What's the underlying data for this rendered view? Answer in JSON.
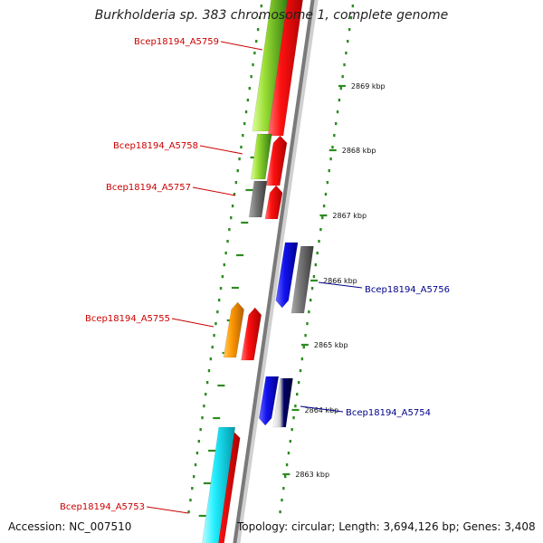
{
  "title": "Burkholderia sp. 383 chromosome 1, complete genome",
  "accession": "Accession: NC_007510",
  "summary": "Topology: circular; Length: 3,694,126 bp; Genes: 3,408",
  "colors": {
    "backbone": "#888888",
    "ring_dots": "#2e8b22",
    "label_left": "#cc0000",
    "label_right": "#00008b"
  },
  "ticks": [
    {
      "label": "2869 kbp"
    },
    {
      "label": "2868 kbp"
    },
    {
      "label": "2867 kbp"
    },
    {
      "label": "2866 kbp"
    },
    {
      "label": "2865 kbp"
    },
    {
      "label": "2864 kbp"
    },
    {
      "label": "2863 kbp"
    }
  ],
  "genes": [
    {
      "label": "Bcep18194_A5759",
      "side": "left",
      "color": "lime"
    },
    {
      "label": "Bcep18194_A5758",
      "side": "left",
      "color": "lime"
    },
    {
      "label": "Bcep18194_A5757",
      "side": "left",
      "color": "gray"
    },
    {
      "label": "Bcep18194_A5756",
      "side": "right",
      "color": "gray"
    },
    {
      "label": "Bcep18194_A5755",
      "side": "left",
      "color": "orange"
    },
    {
      "label": "Bcep18194_A5754",
      "side": "right",
      "color": "navy"
    },
    {
      "label": "Bcep18194_A5753",
      "side": "left",
      "color": "cyan"
    }
  ]
}
